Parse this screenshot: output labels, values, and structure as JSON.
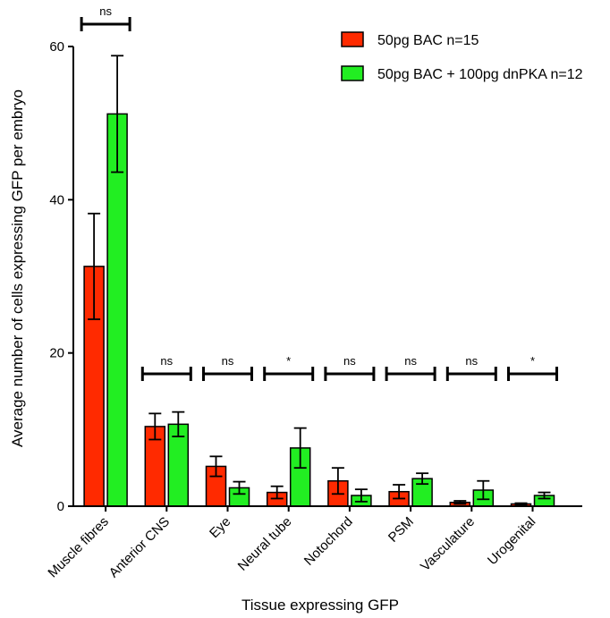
{
  "chart_data": {
    "type": "bar",
    "title": "",
    "xlabel": "Tissue expressing GFP",
    "ylabel": "Average number of cells expressing GFP per embryo",
    "ylim": [
      0,
      60
    ],
    "yticks": [
      0,
      20,
      40,
      60
    ],
    "grid": false,
    "legend_position": "top-right",
    "categories": [
      "Muscle fibres",
      "Anterior CNS",
      "Eye",
      "Neural tube",
      "Notochord",
      "PSM",
      "Vasculature",
      "Urogenital"
    ],
    "series": [
      {
        "name": "50pg BAC n=15",
        "color": "#ff2a00",
        "values": [
          31.3,
          10.4,
          5.2,
          1.8,
          3.3,
          1.9,
          0.5,
          0.3
        ],
        "errors": [
          6.9,
          1.7,
          1.3,
          0.8,
          1.7,
          0.9,
          0.2,
          0.1
        ]
      },
      {
        "name": "50pg BAC + 100pg dnPKA n=12",
        "color": "#22ee22",
        "values": [
          51.2,
          10.7,
          2.4,
          7.6,
          1.4,
          3.6,
          2.1,
          1.4
        ],
        "errors": [
          7.6,
          1.6,
          0.8,
          2.6,
          0.8,
          0.7,
          1.2,
          0.4
        ]
      }
    ],
    "significance": [
      "ns",
      "ns",
      "ns",
      "*",
      "ns",
      "ns",
      "ns",
      "*"
    ]
  }
}
